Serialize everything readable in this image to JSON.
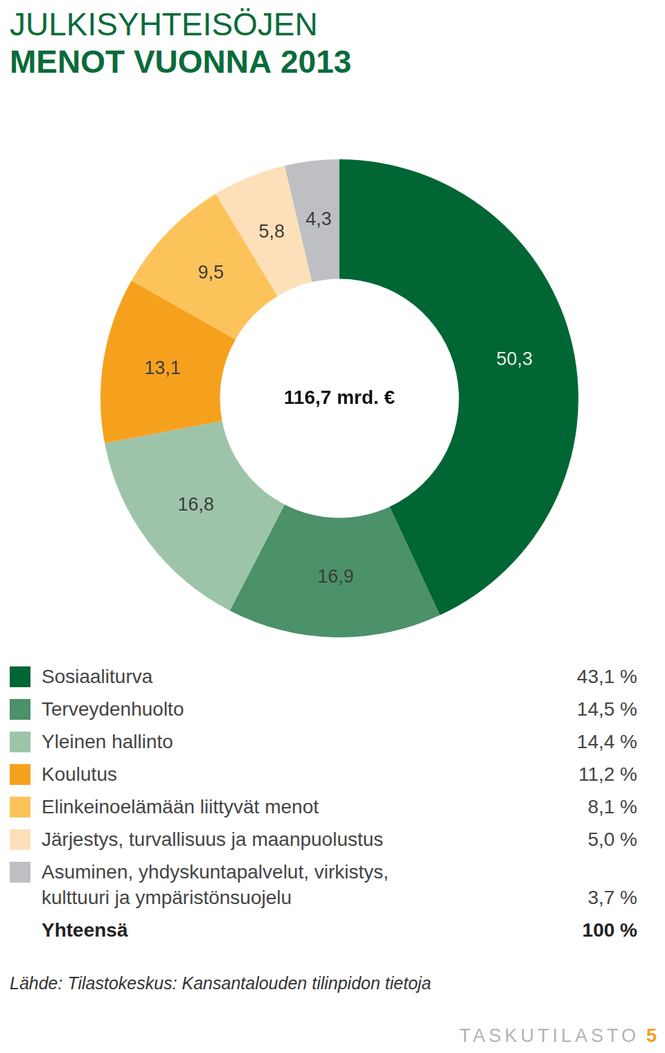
{
  "chart_data": {
    "type": "doughnut",
    "title": "JULKISYHTEISÖJEN MENOT VUONNA 2013",
    "categories": [
      "Sosiaaliturva",
      "Terveydenhuolto",
      "Yleinen hallinto",
      "Koulutus",
      "Elinkeinoelämään liittyvät menot",
      "Järjestys, turvallisuus ja maanpuolustus",
      "Asuminen, yhdyskuntapalvelut, virkistys, kulttuuri ja ympäristönsuojelu"
    ],
    "values": [
      50.3,
      16.9,
      16.8,
      13.1,
      9.5,
      5.8,
      4.3
    ],
    "value_labels": [
      "50,3",
      "16,9",
      "16,8",
      "13,1",
      "9,5",
      "5,8",
      "4,3"
    ],
    "colors": [
      "#006633",
      "#4b9169",
      "#9dc4a9",
      "#f6a11e",
      "#fdc35b",
      "#fde0b9",
      "#bdbfc2"
    ],
    "data_labels": true,
    "center_label": "116,7 mrd. €",
    "legend_shares": [
      "43,1 %",
      "14,5 %",
      "14,4 %",
      "11,2 %",
      "8,1 %",
      "5,0 %",
      "3,7 %"
    ],
    "total": {
      "label": "Yhteensä",
      "share": "100 %"
    },
    "source": "Lähde: Tilastokeskus: Kansantalouden tilinpidon tietoja",
    "footer": "TASKUTILASTO",
    "page": "5"
  }
}
